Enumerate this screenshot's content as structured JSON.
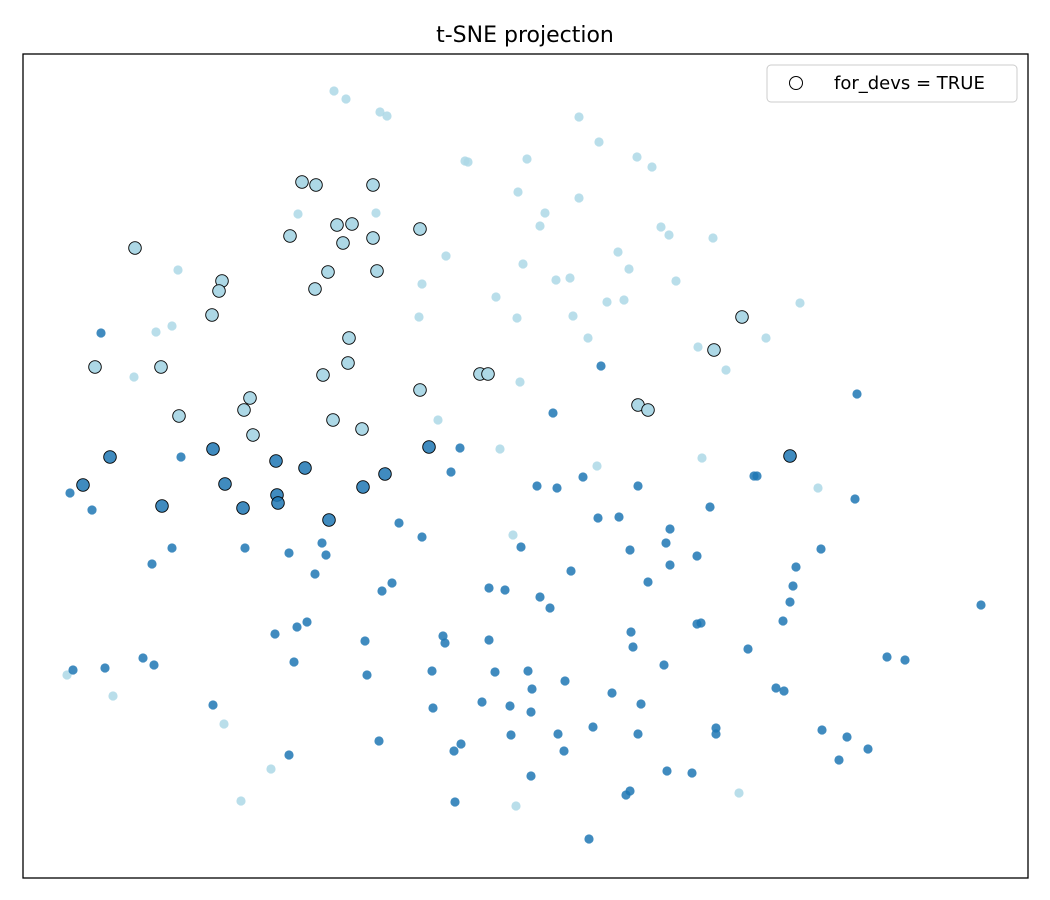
{
  "chart_data": {
    "type": "scatter",
    "title": "t-SNE projection",
    "xlabel": "",
    "ylabel": "",
    "xlim": [
      0,
      100.5
    ],
    "ylim": [
      0,
      82.4
    ],
    "grid": false,
    "ticks": false,
    "legend": {
      "placement": "top-right",
      "entries": [
        {
          "label": "for_devs = TRUE",
          "marker": "hollow-circle"
        }
      ]
    },
    "colors": {
      "light": "#add8e6",
      "dark": "#1f77b4",
      "edge": "#000000"
    },
    "groups": [
      {
        "color_key": "light",
        "for_devs": false,
        "points": [
          [
            31.1,
            78.7
          ],
          [
            32.3,
            77.9
          ],
          [
            35.7,
            76.6
          ],
          [
            36.4,
            76.2
          ],
          [
            55.6,
            76.1
          ],
          [
            57.6,
            73.6
          ],
          [
            61.4,
            72.1
          ],
          [
            62.9,
            71.1
          ],
          [
            44.2,
            71.7
          ],
          [
            44.5,
            71.6
          ],
          [
            50.4,
            71.9
          ],
          [
            49.5,
            68.6
          ],
          [
            55.6,
            68.0
          ],
          [
            52.2,
            66.5
          ],
          [
            51.7,
            65.2
          ],
          [
            63.8,
            65.1
          ],
          [
            64.6,
            64.3
          ],
          [
            69.0,
            64.0
          ],
          [
            27.5,
            66.4
          ],
          [
            35.3,
            66.5
          ],
          [
            42.3,
            62.2
          ],
          [
            50.0,
            61.4
          ],
          [
            59.5,
            62.6
          ],
          [
            60.6,
            60.9
          ],
          [
            53.3,
            59.8
          ],
          [
            54.7,
            60.0
          ],
          [
            65.3,
            59.7
          ],
          [
            15.5,
            60.8
          ],
          [
            39.9,
            59.4
          ],
          [
            47.3,
            58.1
          ],
          [
            58.4,
            57.6
          ],
          [
            60.1,
            57.8
          ],
          [
            77.7,
            57.5
          ],
          [
            39.6,
            56.1
          ],
          [
            49.4,
            56.0
          ],
          [
            55.0,
            56.2
          ],
          [
            56.5,
            54.0
          ],
          [
            14.9,
            55.2
          ],
          [
            13.3,
            54.6
          ],
          [
            11.1,
            50.1
          ],
          [
            67.5,
            53.1
          ],
          [
            74.3,
            54.0
          ],
          [
            70.3,
            50.8
          ],
          [
            49.7,
            49.6
          ],
          [
            41.5,
            45.8
          ],
          [
            47.7,
            42.9
          ],
          [
            67.9,
            42.0
          ],
          [
            57.4,
            41.2
          ],
          [
            79.5,
            39.0
          ],
          [
            49.0,
            34.3
          ],
          [
            4.4,
            20.3
          ],
          [
            9.0,
            18.2
          ],
          [
            20.1,
            15.4
          ],
          [
            24.8,
            10.9
          ],
          [
            21.8,
            7.7
          ],
          [
            49.3,
            7.2
          ],
          [
            71.6,
            8.5
          ]
        ]
      },
      {
        "color_key": "dark",
        "for_devs": false,
        "points": [
          [
            7.8,
            54.5
          ],
          [
            57.8,
            51.2
          ],
          [
            83.4,
            48.4
          ],
          [
            53.0,
            46.5
          ],
          [
            43.7,
            43.0
          ],
          [
            15.8,
            42.1
          ],
          [
            42.8,
            40.6
          ],
          [
            4.7,
            38.5
          ],
          [
            6.9,
            36.8
          ],
          [
            51.4,
            39.2
          ],
          [
            53.4,
            39.0
          ],
          [
            56.0,
            40.1
          ],
          [
            61.5,
            39.2
          ],
          [
            73.1,
            40.2
          ],
          [
            73.4,
            40.2
          ],
          [
            83.2,
            37.9
          ],
          [
            68.7,
            37.1
          ],
          [
            37.6,
            35.5
          ],
          [
            57.5,
            36.0
          ],
          [
            59.6,
            36.1
          ],
          [
            39.9,
            34.1
          ],
          [
            64.7,
            34.9
          ],
          [
            14.9,
            33.0
          ],
          [
            22.2,
            33.0
          ],
          [
            26.6,
            32.5
          ],
          [
            29.9,
            33.5
          ],
          [
            30.3,
            32.3
          ],
          [
            49.8,
            33.1
          ],
          [
            60.7,
            32.8
          ],
          [
            64.3,
            33.5
          ],
          [
            67.4,
            32.2
          ],
          [
            79.8,
            32.9
          ],
          [
            12.9,
            31.4
          ],
          [
            29.2,
            30.4
          ],
          [
            54.8,
            30.7
          ],
          [
            64.7,
            31.3
          ],
          [
            77.3,
            31.1
          ],
          [
            36.9,
            29.5
          ],
          [
            35.9,
            28.7
          ],
          [
            62.5,
            29.6
          ],
          [
            46.6,
            29.0
          ],
          [
            48.2,
            28.8
          ],
          [
            51.7,
            28.1
          ],
          [
            52.7,
            27.0
          ],
          [
            77.0,
            29.2
          ],
          [
            76.7,
            27.6
          ],
          [
            95.8,
            27.3
          ],
          [
            25.2,
            24.4
          ],
          [
            27.4,
            25.1
          ],
          [
            28.4,
            25.6
          ],
          [
            42.0,
            24.2
          ],
          [
            42.2,
            23.5
          ],
          [
            46.6,
            23.8
          ],
          [
            60.8,
            24.6
          ],
          [
            61.0,
            23.1
          ],
          [
            67.4,
            25.4
          ],
          [
            67.8,
            25.5
          ],
          [
            76.0,
            25.7
          ],
          [
            34.2,
            23.7
          ],
          [
            72.5,
            22.9
          ],
          [
            12.0,
            22.0
          ],
          [
            13.1,
            21.3
          ],
          [
            5.0,
            20.8
          ],
          [
            8.2,
            21.0
          ],
          [
            27.1,
            21.6
          ],
          [
            34.4,
            20.3
          ],
          [
            40.9,
            20.7
          ],
          [
            47.2,
            20.6
          ],
          [
            50.5,
            20.7
          ],
          [
            64.1,
            21.3
          ],
          [
            86.4,
            22.1
          ],
          [
            88.2,
            21.8
          ],
          [
            54.2,
            19.7
          ],
          [
            50.9,
            18.9
          ],
          [
            58.9,
            18.5
          ],
          [
            61.8,
            17.4
          ],
          [
            75.3,
            19.0
          ],
          [
            76.1,
            18.7
          ],
          [
            19.0,
            17.3
          ],
          [
            41.0,
            17.0
          ],
          [
            45.9,
            17.6
          ],
          [
            48.7,
            17.2
          ],
          [
            50.8,
            16.6
          ],
          [
            69.3,
            15.0
          ],
          [
            69.3,
            14.4
          ],
          [
            79.9,
            14.8
          ],
          [
            82.4,
            14.1
          ],
          [
            57.0,
            15.1
          ],
          [
            48.8,
            14.3
          ],
          [
            53.5,
            14.4
          ],
          [
            61.5,
            14.4
          ],
          [
            35.6,
            13.7
          ],
          [
            43.8,
            13.4
          ],
          [
            43.1,
            12.7
          ],
          [
            54.1,
            12.7
          ],
          [
            84.5,
            12.9
          ],
          [
            26.6,
            12.3
          ],
          [
            81.6,
            11.8
          ],
          [
            64.4,
            10.7
          ],
          [
            66.9,
            10.5
          ],
          [
            50.8,
            10.2
          ],
          [
            60.7,
            8.7
          ],
          [
            60.3,
            8.3
          ],
          [
            43.2,
            7.6
          ],
          [
            56.6,
            3.9
          ]
        ]
      },
      {
        "color_key": "light",
        "for_devs": true,
        "points": [
          [
            27.9,
            69.6
          ],
          [
            29.3,
            69.3
          ],
          [
            35.0,
            69.3
          ],
          [
            11.2,
            63.0
          ],
          [
            26.7,
            64.2
          ],
          [
            31.4,
            65.3
          ],
          [
            32.9,
            65.4
          ],
          [
            32.0,
            63.5
          ],
          [
            35.0,
            64.0
          ],
          [
            39.7,
            64.9
          ],
          [
            30.5,
            60.6
          ],
          [
            35.4,
            60.7
          ],
          [
            19.9,
            59.7
          ],
          [
            19.6,
            58.7
          ],
          [
            29.2,
            58.9
          ],
          [
            18.9,
            56.3
          ],
          [
            32.6,
            54.0
          ],
          [
            71.9,
            56.1
          ],
          [
            69.1,
            52.8
          ],
          [
            7.2,
            51.1
          ],
          [
            13.8,
            51.1
          ],
          [
            32.5,
            51.5
          ],
          [
            30.0,
            50.3
          ],
          [
            45.7,
            50.4
          ],
          [
            46.5,
            50.4
          ],
          [
            39.7,
            48.8
          ],
          [
            22.7,
            48.0
          ],
          [
            15.6,
            46.2
          ],
          [
            22.1,
            46.8
          ],
          [
            31.0,
            45.8
          ],
          [
            61.5,
            47.3
          ],
          [
            62.5,
            46.8
          ],
          [
            23.0,
            44.3
          ],
          [
            33.9,
            44.9
          ]
        ]
      },
      {
        "color_key": "dark",
        "for_devs": true,
        "points": [
          [
            8.7,
            42.1
          ],
          [
            19.0,
            42.9
          ],
          [
            40.6,
            43.1
          ],
          [
            6.0,
            39.3
          ],
          [
            25.3,
            41.7
          ],
          [
            28.2,
            41.0
          ],
          [
            20.2,
            39.4
          ],
          [
            36.2,
            40.4
          ],
          [
            34.0,
            39.1
          ],
          [
            13.9,
            37.2
          ],
          [
            22.0,
            37.0
          ],
          [
            25.4,
            38.3
          ],
          [
            25.5,
            37.5
          ],
          [
            30.6,
            35.8
          ],
          [
            76.7,
            42.2
          ]
        ]
      }
    ]
  }
}
